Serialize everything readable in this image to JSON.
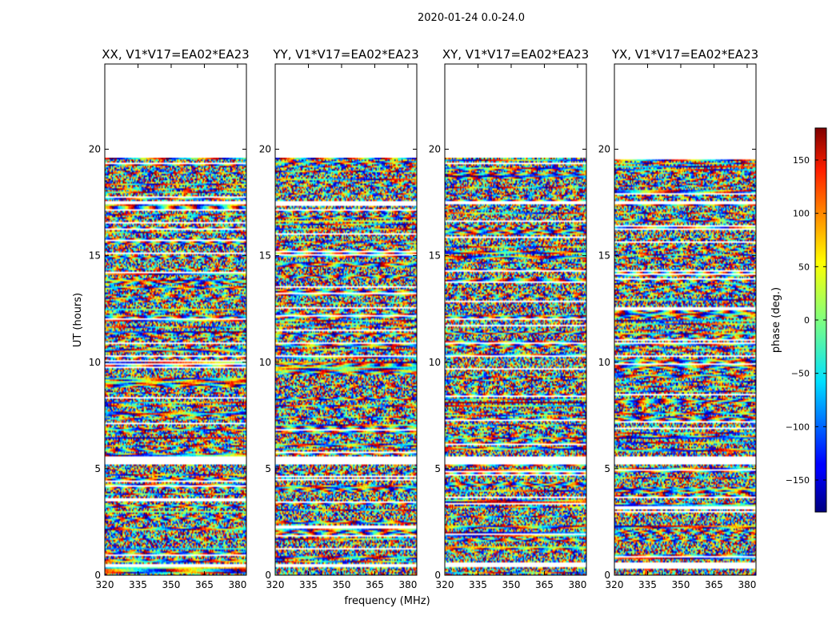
{
  "figure": {
    "suptitle": "2020-01-24 0.0-24.0",
    "xlabel": "frequency (MHz)",
    "ylabel": "UT (hours)"
  },
  "chart_data": {
    "type": "heatmap",
    "xlim": [
      320,
      384
    ],
    "ylim": [
      0,
      24
    ],
    "xticks": [
      320,
      335,
      350,
      365,
      380
    ],
    "yticks": [
      0,
      5,
      10,
      15,
      20
    ],
    "panels": [
      {
        "title": "XX, V1*V17=EA02*EA23",
        "pol": "XX"
      },
      {
        "title": "YY, V1*V17=EA02*EA23",
        "pol": "YY"
      },
      {
        "title": "XY, V1*V17=EA02*EA23",
        "pol": "XY"
      },
      {
        "title": "YX, V1*V17=EA02*EA23",
        "pol": "YX"
      }
    ],
    "data_time_range": [
      0,
      19.6
    ],
    "gaps_hours": [
      [
        0.35,
        0.55
      ],
      [
        5.2,
        5.6
      ],
      [
        10.25,
        10.35
      ],
      [
        10.85,
        10.95
      ],
      [
        17.4,
        17.55
      ]
    ],
    "colorbar": {
      "label": "phase (deg.)",
      "range": [
        -180,
        180
      ],
      "ticks": [
        150,
        100,
        50,
        0,
        -50,
        -100,
        -150
      ],
      "tick_labels": [
        "150",
        "100",
        "50",
        "0",
        "−50",
        "−100",
        "−150"
      ],
      "colormap": "jet"
    }
  }
}
